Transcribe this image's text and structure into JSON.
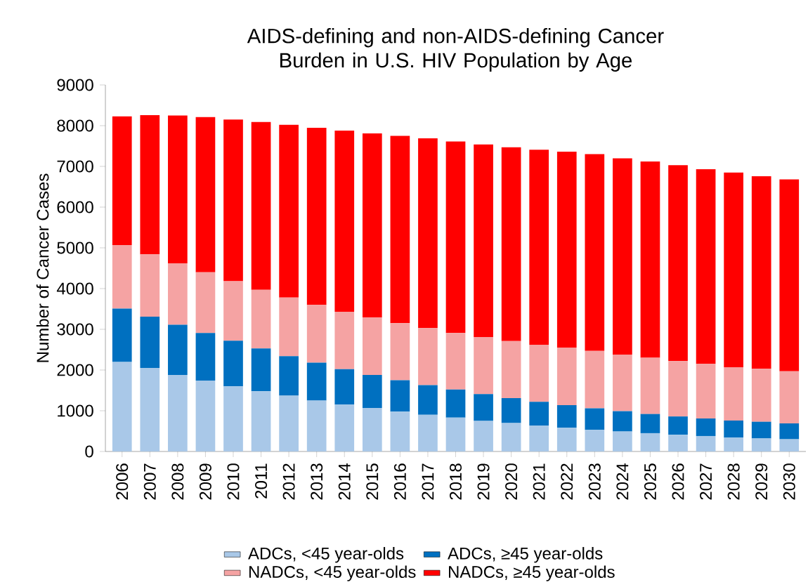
{
  "chart_data": {
    "type": "bar",
    "stacked": true,
    "title": "AIDS-defining and non-AIDS-defining Cancer Burden in U.S. HIV Population by Age",
    "ylabel": "Number of Cancer Cases",
    "categories": [
      "2006",
      "2007",
      "2008",
      "2009",
      "2010",
      "2011",
      "2012",
      "2013",
      "2014",
      "2015",
      "2016",
      "2017",
      "2018",
      "2019",
      "2020",
      "2021",
      "2022",
      "2023",
      "2024",
      "2025",
      "2026",
      "2027",
      "2028",
      "2029",
      "2030"
    ],
    "series": [
      {
        "name": "ADCs, <45 year-olds",
        "color": "#a9c8e8",
        "values": [
          2200,
          2050,
          1880,
          1740,
          1600,
          1480,
          1370,
          1250,
          1150,
          1070,
          980,
          900,
          830,
          750,
          700,
          640,
          580,
          530,
          490,
          450,
          410,
          380,
          340,
          320,
          300
        ]
      },
      {
        "name": "ADCs, ≥45 year-olds",
        "color": "#0070c0",
        "values": [
          1310,
          1260,
          1230,
          1170,
          1120,
          1050,
          970,
          930,
          870,
          810,
          770,
          730,
          690,
          660,
          610,
          580,
          560,
          530,
          500,
          470,
          450,
          430,
          420,
          410,
          390
        ]
      },
      {
        "name": "NADCs, <45 year-olds",
        "color": "#f5a3a3",
        "values": [
          1560,
          1530,
          1510,
          1490,
          1460,
          1440,
          1440,
          1420,
          1410,
          1410,
          1400,
          1400,
          1390,
          1400,
          1400,
          1400,
          1410,
          1410,
          1390,
          1380,
          1360,
          1340,
          1310,
          1300,
          1280
        ]
      },
      {
        "name": "NADCs, ≥45 year-olds",
        "color": "#ff0000",
        "values": [
          3160,
          3420,
          3630,
          3810,
          3970,
          4120,
          4240,
          4350,
          4450,
          4520,
          4600,
          4660,
          4700,
          4730,
          4760,
          4790,
          4810,
          4830,
          4820,
          4820,
          4810,
          4780,
          4780,
          4730,
          4710
        ]
      }
    ],
    "ylim": [
      0,
      9000
    ],
    "yticks": [
      0,
      1000,
      2000,
      3000,
      4000,
      5000,
      6000,
      7000,
      8000,
      9000
    ],
    "grid": false,
    "legend": "bottom"
  }
}
